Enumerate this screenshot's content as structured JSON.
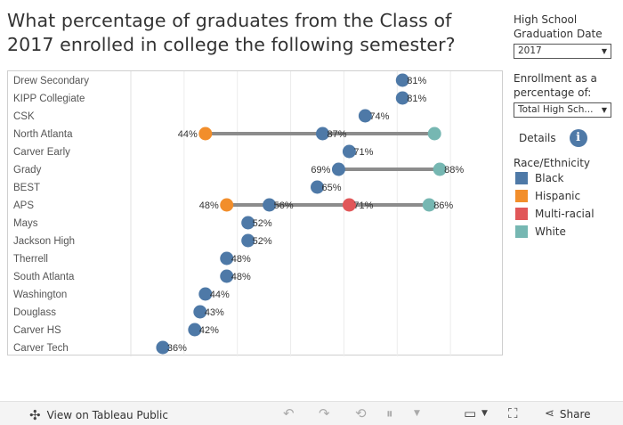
{
  "title": "What percentage of graduates from the Class of 2017 enrolled in college the following semester?",
  "filters": {
    "graduation_date_label": "High School Graduation Date",
    "graduation_date_value": "2017",
    "enrollment_label": "Enrollment as a percentage of:",
    "enrollment_value": "Total High Sch..."
  },
  "details_label": "Details",
  "legend": {
    "title": "Race/Ethnicity",
    "items": [
      {
        "label": "Black",
        "color": "#4e79a7"
      },
      {
        "label": "Hispanic",
        "color": "#f28e2b"
      },
      {
        "label": "Multi-racial",
        "color": "#e15759"
      },
      {
        "label": "White",
        "color": "#76b7b2"
      }
    ]
  },
  "footer": {
    "view_label": "View on Tableau Public",
    "share_label": "Share"
  },
  "chart_data": {
    "type": "scatter",
    "title": "",
    "xlabel": "",
    "ylabel": "",
    "xlim": [
      0,
      100
    ],
    "grid": true,
    "categories": [
      "Drew Secondary",
      "KIPP Collegiate",
      "CSK",
      "North Atlanta",
      "Carver Early",
      "Grady",
      "BEST",
      "APS",
      "Mays",
      "Jackson High",
      "Therrell",
      "South Atlanta",
      "Washington",
      "Douglass",
      "Carver HS",
      "Carver Tech"
    ],
    "series": [
      {
        "name": "Black",
        "color": "#4e79a7",
        "values": [
          81,
          81,
          74,
          66,
          71,
          69,
          65,
          56,
          52,
          52,
          48,
          48,
          44,
          43,
          42,
          36
        ]
      },
      {
        "name": "Hispanic",
        "color": "#f28e2b",
        "values": [
          null,
          null,
          null,
          44,
          null,
          null,
          null,
          48,
          null,
          null,
          null,
          null,
          null,
          null,
          null,
          null
        ]
      },
      {
        "name": "Multi-racial",
        "color": "#e15759",
        "values": [
          null,
          null,
          null,
          null,
          null,
          null,
          null,
          71,
          null,
          null,
          null,
          null,
          null,
          null,
          null,
          null
        ]
      },
      {
        "name": "White",
        "color": "#76b7b2",
        "values": [
          null,
          null,
          null,
          87,
          null,
          88,
          null,
          86,
          null,
          null,
          null,
          null,
          null,
          null,
          null,
          null
        ]
      }
    ],
    "data_labels": [
      [
        "81%"
      ],
      [
        "81%"
      ],
      [
        "74%"
      ],
      [
        "44%",
        "87%"
      ],
      [
        "71%"
      ],
      [
        "69%",
        "88%"
      ],
      [
        "65%"
      ],
      [
        "48%",
        "56%",
        "71%",
        "86%"
      ],
      [
        "52%"
      ],
      [
        "52%"
      ],
      [
        "48%"
      ],
      [
        "48%"
      ],
      [
        "44%"
      ],
      [
        "43%"
      ],
      [
        "42%"
      ],
      [
        "36%"
      ]
    ]
  }
}
